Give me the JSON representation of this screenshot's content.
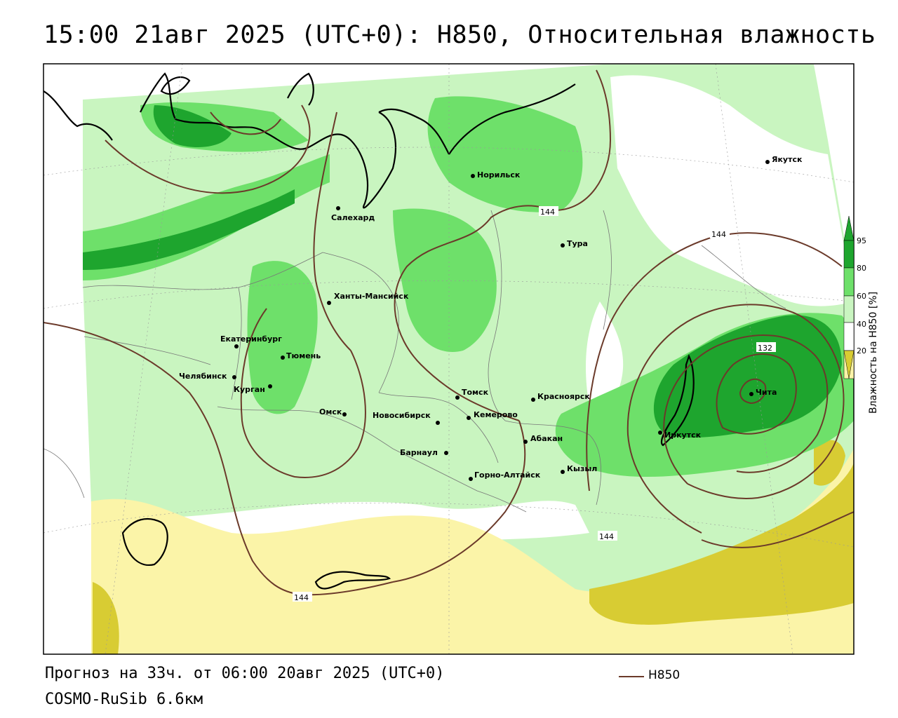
{
  "title": "15:00 21авг 2025 (UTC+0): H850, Относительная влажность",
  "footer": {
    "forecast": "Прогноз на 33ч. от 06:00 20авг 2025 (UTC+0)",
    "model": "COSMO-RuSib 6.6км",
    "legend_line": "H850"
  },
  "colorbar": {
    "title": "Влажность на H850 [%]",
    "ticks": [
      "95",
      "80",
      "60",
      "40",
      "20"
    ],
    "colors": {
      "very_dry": "#d8cc33",
      "dry": "#fbf4a8",
      "mid": "#ffffff",
      "moist": "#c9f5c0",
      "wet": "#6ee06a",
      "very_wet": "#1ea52e"
    }
  },
  "cities": [
    {
      "name": "Якутск"
    },
    {
      "name": "Норильск"
    },
    {
      "name": "Салехард"
    },
    {
      "name": "Тура"
    },
    {
      "name": "Ханты-Мансийск"
    },
    {
      "name": "Екатеринбург"
    },
    {
      "name": "Тюмень"
    },
    {
      "name": "Челябинск"
    },
    {
      "name": "Курган"
    },
    {
      "name": "Омск"
    },
    {
      "name": "Томск"
    },
    {
      "name": "Красноярск"
    },
    {
      "name": "Новосибирск"
    },
    {
      "name": "Кемерово"
    },
    {
      "name": "Абакан"
    },
    {
      "name": "Иркутск"
    },
    {
      "name": "Чита"
    },
    {
      "name": "Барнаул"
    },
    {
      "name": "Горно-Алтайск"
    },
    {
      "name": "Кызыл"
    }
  ],
  "isoline_labels": [
    "144",
    "144",
    "132",
    "144",
    "144"
  ]
}
